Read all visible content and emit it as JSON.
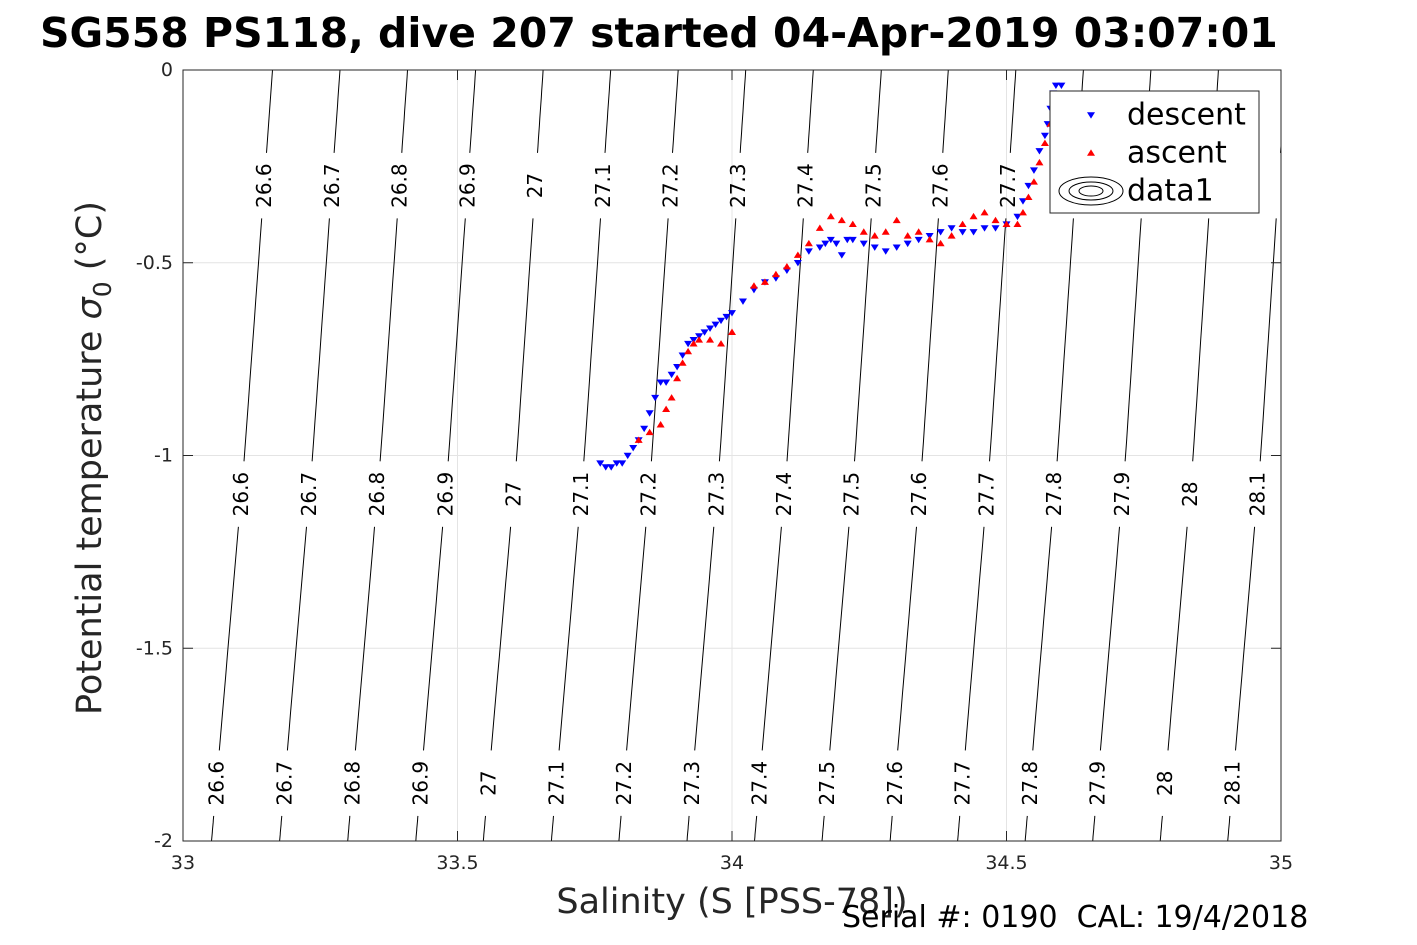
{
  "chart_data": {
    "type": "scatter",
    "title": "SG558 PS118, dive 207 started 04-Apr-2019 03:07:01",
    "xlabel": "Salinity (S [PSS-78])",
    "ylabel_main": "Potential temperature ",
    "ylabel_sigma": "σ",
    "ylabel_sub": "0",
    "ylabel_unit": " (°C)",
    "xlim": [
      33,
      35
    ],
    "ylim": [
      -2,
      0
    ],
    "xticks": [
      33,
      33.5,
      34,
      34.5,
      35
    ],
    "xtick_labels": [
      "33",
      "33.5",
      "34",
      "34.5",
      "35"
    ],
    "yticks": [
      0,
      -0.5,
      -1,
      -1.5,
      -2
    ],
    "ytick_labels": [
      "0",
      "-0.5",
      "-1",
      "-1.5",
      "-2"
    ],
    "grid": true,
    "legend_placement": "top-right",
    "legend": [
      {
        "name": "descent",
        "marker": "triangle-down",
        "color": "#0000ff"
      },
      {
        "name": "ascent",
        "marker": "triangle-up",
        "color": "#ff0000"
      },
      {
        "name": "data1",
        "marker": "contour",
        "color": "#000000"
      }
    ],
    "contours": {
      "levels": [
        26.6,
        26.7,
        26.8,
        26.9,
        27,
        27.1,
        27.2,
        27.3,
        27.4,
        27.5,
        27.6,
        27.7,
        27.8,
        27.9,
        28,
        28.1
      ],
      "level_labels": [
        "26.6",
        "26.7",
        "26.8",
        "26.9",
        "27",
        "27.1",
        "27.2",
        "27.3",
        "27.4",
        "27.5",
        "27.6",
        "27.7",
        "27.8",
        "27.9",
        "28",
        "28.1"
      ],
      "salinity_at_t0": [
        33.163,
        33.286,
        33.409,
        33.533,
        33.656,
        33.779,
        33.902,
        34.025,
        34.148,
        34.272,
        34.394,
        34.517,
        34.64,
        34.763,
        34.886,
        35.009
      ],
      "salinity_at_tm1": [
        33.112,
        33.236,
        33.36,
        33.484,
        33.608,
        33.731,
        33.854,
        33.978,
        34.101,
        34.224,
        34.347,
        34.47,
        34.593,
        34.717,
        34.84,
        34.963
      ],
      "salinity_at_tm2": [
        33.052,
        33.176,
        33.3,
        33.424,
        33.547,
        33.671,
        33.794,
        33.918,
        34.041,
        34.164,
        34.288,
        34.411,
        34.534,
        34.657,
        34.78,
        34.903
      ],
      "label_temps": [
        -0.3,
        -1.1,
        -1.85
      ]
    },
    "series": [
      {
        "name": "descent",
        "color": "#0000ff",
        "marker": "triangle-down",
        "x": [
          33.76,
          33.77,
          33.78,
          33.79,
          33.8,
          33.81,
          33.82,
          33.83,
          33.84,
          33.85,
          33.86,
          33.87,
          33.88,
          33.89,
          33.9,
          33.91,
          33.92,
          33.93,
          33.94,
          33.95,
          33.96,
          33.97,
          33.98,
          33.99,
          34.0,
          34.02,
          34.04,
          34.06,
          34.08,
          34.1,
          34.12,
          34.14,
          34.16,
          34.17,
          34.18,
          34.19,
          34.2,
          34.21,
          34.22,
          34.24,
          34.26,
          34.28,
          34.3,
          34.32,
          34.34,
          34.36,
          34.38,
          34.4,
          34.42,
          34.44,
          34.46,
          34.48,
          34.5,
          34.52,
          34.53,
          34.54,
          34.55,
          34.56,
          34.57,
          34.575,
          34.58,
          34.585,
          34.59,
          34.6
        ],
        "y": [
          -1.02,
          -1.03,
          -1.03,
          -1.02,
          -1.02,
          -1.0,
          -0.98,
          -0.96,
          -0.93,
          -0.89,
          -0.85,
          -0.81,
          -0.81,
          -0.79,
          -0.77,
          -0.74,
          -0.71,
          -0.7,
          -0.69,
          -0.68,
          -0.67,
          -0.66,
          -0.65,
          -0.64,
          -0.63,
          -0.6,
          -0.57,
          -0.55,
          -0.54,
          -0.52,
          -0.5,
          -0.47,
          -0.46,
          -0.45,
          -0.44,
          -0.45,
          -0.48,
          -0.44,
          -0.44,
          -0.45,
          -0.46,
          -0.47,
          -0.46,
          -0.45,
          -0.44,
          -0.43,
          -0.42,
          -0.41,
          -0.42,
          -0.42,
          -0.41,
          -0.41,
          -0.4,
          -0.38,
          -0.34,
          -0.3,
          -0.26,
          -0.21,
          -0.17,
          -0.14,
          -0.1,
          -0.06,
          -0.04,
          -0.04
        ]
      },
      {
        "name": "ascent",
        "color": "#ff0000",
        "marker": "triangle-up",
        "x": [
          33.83,
          33.85,
          33.87,
          33.88,
          33.89,
          33.9,
          33.91,
          33.92,
          33.93,
          33.94,
          33.96,
          33.98,
          34.0,
          34.04,
          34.06,
          34.08,
          34.1,
          34.12,
          34.14,
          34.16,
          34.18,
          34.2,
          34.22,
          34.24,
          34.26,
          34.28,
          34.3,
          34.32,
          34.34,
          34.36,
          34.38,
          34.4,
          34.42,
          34.44,
          34.46,
          34.48,
          34.5,
          34.52,
          34.53,
          34.54,
          34.55,
          34.56,
          34.57,
          34.58,
          34.59
        ],
        "y": [
          -0.96,
          -0.94,
          -0.92,
          -0.88,
          -0.85,
          -0.8,
          -0.76,
          -0.73,
          -0.71,
          -0.7,
          -0.7,
          -0.71,
          -0.68,
          -0.56,
          -0.55,
          -0.53,
          -0.51,
          -0.48,
          -0.45,
          -0.41,
          -0.38,
          -0.39,
          -0.4,
          -0.42,
          -0.43,
          -0.42,
          -0.39,
          -0.43,
          -0.42,
          -0.44,
          -0.45,
          -0.43,
          -0.4,
          -0.38,
          -0.37,
          -0.39,
          -0.4,
          -0.4,
          -0.37,
          -0.33,
          -0.29,
          -0.24,
          -0.19,
          -0.14,
          -0.1
        ]
      }
    ]
  },
  "footer": {
    "serial_label": "Serial #: 0190",
    "cal_label": "CAL: 19/4/2018"
  }
}
